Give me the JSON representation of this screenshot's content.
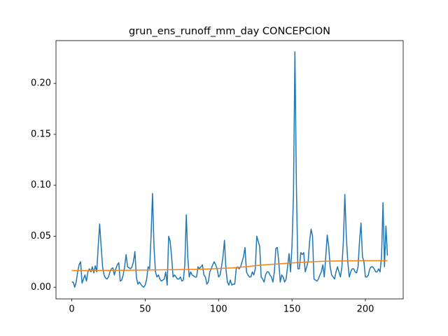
{
  "chart_data": {
    "type": "line",
    "title": "grun_ens_runoff_mm_day CONCEPCION",
    "xlim": [
      -10.75,
      225.75
    ],
    "xticks": [
      0,
      50,
      100,
      150,
      200
    ],
    "ylim": [
      -0.0115,
      0.242
    ],
    "yticks": [
      {
        "value": 0,
        "label": "0.00"
      },
      {
        "value": 0.05,
        "label": "0.05"
      },
      {
        "value": 0.1,
        "label": "0.10"
      },
      {
        "value": 0.15,
        "label": "0.15"
      },
      {
        "value": 0.2,
        "label": "0.20"
      }
    ],
    "series": [
      {
        "color": "#1f77b4",
        "x": [
          0,
          1,
          2,
          3,
          4,
          5,
          6,
          7,
          8,
          9,
          10,
          11,
          12,
          13,
          14,
          15,
          16,
          17,
          18,
          19,
          20,
          21,
          22,
          23,
          24,
          25,
          26,
          27,
          28,
          29,
          30,
          31,
          32,
          33,
          34,
          35,
          36,
          37,
          38,
          39,
          40,
          41,
          42,
          43,
          44,
          45,
          46,
          47,
          48,
          49,
          50,
          51,
          52,
          53,
          54,
          55,
          56,
          57,
          58,
          59,
          60,
          61,
          62,
          63,
          64,
          65,
          66,
          67,
          68,
          69,
          70,
          71,
          72,
          73,
          74,
          75,
          76,
          77,
          78,
          79,
          80,
          81,
          82,
          83,
          84,
          85,
          86,
          87,
          88,
          89,
          90,
          91,
          92,
          93,
          94,
          95,
          96,
          97,
          98,
          99,
          100,
          101,
          102,
          103,
          104,
          105,
          106,
          107,
          108,
          109,
          110,
          111,
          112,
          113,
          114,
          115,
          116,
          117,
          118,
          119,
          120,
          121,
          122,
          123,
          124,
          125,
          126,
          127,
          128,
          129,
          130,
          131,
          132,
          133,
          134,
          135,
          136,
          137,
          138,
          139,
          140,
          141,
          142,
          143,
          144,
          145,
          146,
          147,
          148,
          149,
          150,
          151,
          152,
          153,
          154,
          155,
          156,
          157,
          158,
          159,
          160,
          161,
          162,
          163,
          164,
          165,
          166,
          167,
          168,
          169,
          170,
          171,
          172,
          173,
          174,
          175,
          176,
          177,
          178,
          179,
          180,
          181,
          182,
          183,
          184,
          185,
          186,
          187,
          188,
          189,
          190,
          191,
          192,
          193,
          194,
          195,
          196,
          197,
          198,
          199,
          200,
          201,
          202,
          203,
          204,
          205,
          206,
          207,
          208,
          209,
          210,
          211,
          212,
          213,
          214,
          215
        ],
        "values": [
          0.005,
          0.005,
          0.0,
          0.005,
          0.015,
          0.022,
          0.025,
          0.004,
          0.008,
          0.012,
          0.006,
          0.015,
          0.018,
          0.015,
          0.02,
          0.014,
          0.021,
          0.015,
          0.04,
          0.062,
          0.04,
          0.02,
          0.012,
          0.009,
          0.008,
          0.01,
          0.015,
          0.018,
          0.019,
          0.012,
          0.018,
          0.022,
          0.024,
          0.006,
          0.007,
          0.012,
          0.02,
          0.032,
          0.02,
          0.019,
          0.018,
          0.02,
          0.025,
          0.035,
          0.01,
          0.003,
          0.005,
          0.003,
          0.001,
          0.0,
          0.002,
          0.008,
          0.02,
          0.018,
          0.05,
          0.092,
          0.04,
          0.015,
          0.01,
          0.012,
          0.008,
          0.006,
          0.007,
          0.008,
          0.015,
          0.002,
          0.05,
          0.045,
          0.03,
          0.01,
          0.012,
          0.01,
          0.008,
          0.008,
          0.01,
          0.006,
          0.007,
          0.022,
          0.071,
          0.03,
          0.01,
          0.015,
          0.012,
          0.011,
          0.01,
          0.01,
          0.02,
          0.018,
          0.02,
          0.022,
          0.012,
          0.01,
          0.003,
          0.005,
          0.015,
          0.018,
          0.022,
          0.025,
          0.022,
          0.018,
          0.01,
          0.012,
          0.02,
          0.03,
          0.046,
          0.018,
          0.005,
          0.002,
          0.007,
          0.002,
          0.003,
          0.003,
          0.018,
          0.02,
          0.018,
          0.02,
          0.025,
          0.03,
          0.039,
          0.015,
          0.012,
          0.01,
          0.01,
          0.015,
          0.012,
          0.018,
          0.05,
          0.045,
          0.04,
          0.01,
          0.008,
          0.005,
          0.012,
          0.015,
          0.015,
          0.012,
          0.01,
          0.005,
          0.015,
          0.038,
          0.039,
          0.025,
          0.005,
          0.012,
          0.01,
          0.005,
          0.008,
          0.02,
          0.033,
          0.015,
          0.04,
          0.09,
          0.231,
          0.1,
          0.018,
          0.018,
          0.034,
          0.032,
          0.034,
          0.015,
          0.02,
          0.025,
          0.045,
          0.057,
          0.05,
          0.008,
          0.007,
          0.006,
          0.008,
          0.012,
          0.015,
          0.022,
          0.01,
          0.03,
          0.051,
          0.04,
          0.02,
          0.012,
          0.01,
          0.008,
          0.015,
          0.02,
          0.015,
          0.01,
          0.02,
          0.045,
          0.091,
          0.05,
          0.025,
          0.01,
          0.015,
          0.018,
          0.018,
          0.015,
          0.014,
          0.02,
          0.045,
          0.063,
          0.03,
          0.025,
          0.01,
          0.01,
          0.012,
          0.018,
          0.02,
          0.02,
          0.018,
          0.015,
          0.015,
          0.018,
          0.015,
          0.03,
          0.083,
          0.02,
          0.06,
          0.031
        ]
      },
      {
        "color": "#ff7f0e",
        "x": [
          0,
          10,
          20,
          30,
          40,
          50,
          60,
          70,
          80,
          90,
          100,
          110,
          120,
          130,
          140,
          150,
          160,
          170,
          180,
          190,
          200,
          210,
          215
        ],
        "values": [
          0.0163,
          0.0163,
          0.0164,
          0.0165,
          0.0166,
          0.0168,
          0.017,
          0.0172,
          0.0174,
          0.0177,
          0.0183,
          0.019,
          0.0203,
          0.0218,
          0.0228,
          0.0238,
          0.0247,
          0.0253,
          0.0257,
          0.0259,
          0.026,
          0.026,
          0.026
        ]
      }
    ]
  }
}
